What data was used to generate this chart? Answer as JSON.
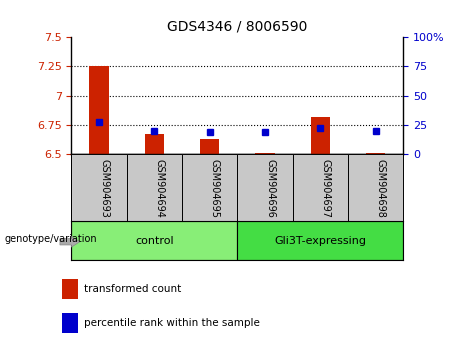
{
  "title": "GDS4346 / 8006590",
  "samples": [
    "GSM904693",
    "GSM904694",
    "GSM904695",
    "GSM904696",
    "GSM904697",
    "GSM904698"
  ],
  "transformed_counts": [
    7.25,
    6.67,
    6.63,
    6.51,
    6.82,
    6.51
  ],
  "percentile_ranks": [
    27,
    20,
    19,
    19,
    22,
    20
  ],
  "ylim_left": [
    6.5,
    7.5
  ],
  "ylim_right": [
    0,
    100
  ],
  "yticks_left": [
    6.5,
    6.75,
    7.0,
    7.25,
    7.5
  ],
  "yticks_right": [
    0,
    25,
    50,
    75,
    100
  ],
  "ytick_labels_left": [
    "6.5",
    "6.75",
    "7",
    "7.25",
    "7.5"
  ],
  "ytick_labels_right": [
    "0",
    "25",
    "50",
    "75",
    "100%"
  ],
  "hlines": [
    6.75,
    7.0,
    7.25
  ],
  "bar_width": 0.35,
  "bar_color": "#cc2200",
  "dot_color": "#0000cc",
  "bar_base": 6.5,
  "groups": [
    {
      "label": "control",
      "samples": [
        0,
        1,
        2
      ],
      "color": "#88ee77"
    },
    {
      "label": "Gli3T-expressing",
      "samples": [
        3,
        4,
        5
      ],
      "color": "#44dd44"
    }
  ],
  "sample_box_color": "#c8c8c8",
  "tick_color_left": "#cc2200",
  "tick_color_right": "#0000cc",
  "legend_items": [
    {
      "color": "#cc2200",
      "label": "transformed count"
    },
    {
      "color": "#0000cc",
      "label": "percentile rank within the sample"
    }
  ],
  "genotype_label": "genotype/variation",
  "border_color": "#000000"
}
